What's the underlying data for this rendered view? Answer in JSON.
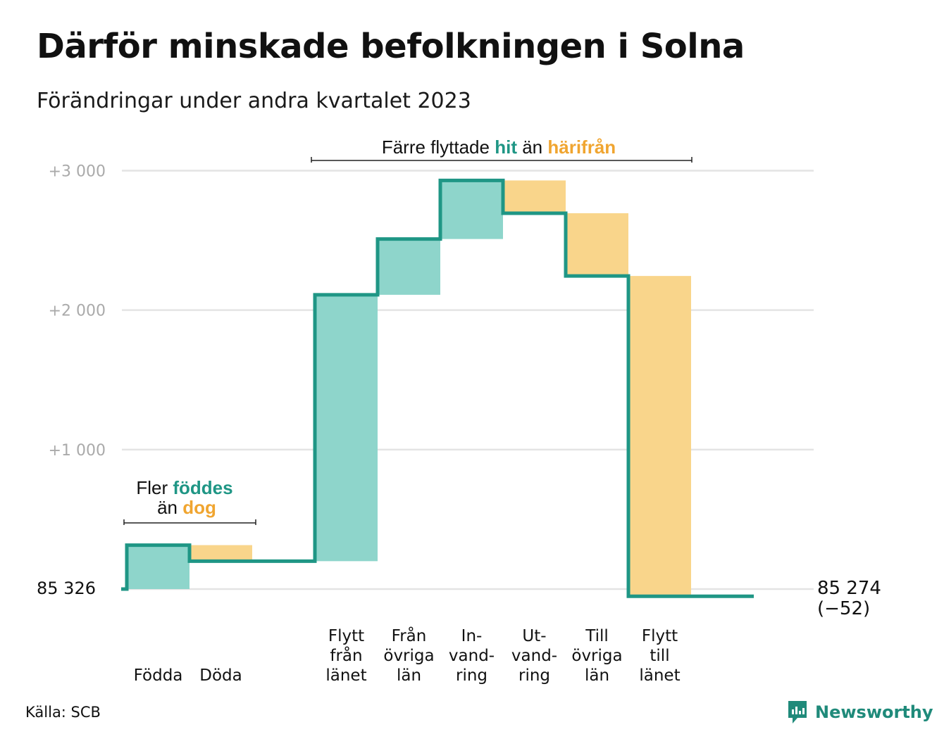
{
  "title": "Därför minskade befolkningen i Solna",
  "subtitle": "Förändringar under andra kvartalet 2023",
  "source": "Källa: SCB",
  "brand": "Newsworthy",
  "colors": {
    "increase": "#8ed5cb",
    "decrease": "#f9d58b",
    "line": "#1f9685",
    "grid": "#e4e4e4",
    "accent_green": "#1f9685",
    "accent_orange": "#f0a530"
  },
  "annotations": {
    "births": {
      "line1_a": "Fler ",
      "line1_b": "föddes",
      "line2_a": "än ",
      "line2_b": "dog"
    },
    "moves": {
      "a": "Färre flyttade ",
      "b": "hit",
      "c": " än ",
      "d": "härifrån"
    }
  },
  "chart_data": {
    "type": "waterfall",
    "start_value": 85326,
    "start_label": "85  326",
    "end_value": 85274,
    "end_label": "85 274",
    "end_change_label": "(−52)",
    "y_ticks": [
      {
        "value": 3000,
        "label": "+3  000"
      },
      {
        "value": 2000,
        "label": "+2  000"
      },
      {
        "value": 1000,
        "label": "+1  000"
      }
    ],
    "ylim": [
      -60,
      3000
    ],
    "grid": true,
    "steps": [
      {
        "labels": [
          "Födda"
        ],
        "change": 315
      },
      {
        "labels": [
          "Döda"
        ],
        "change": -115
      },
      {
        "labels": [],
        "change": 0
      },
      {
        "labels": [
          "Flytt",
          "från",
          "länet"
        ],
        "change": 1910
      },
      {
        "labels": [
          "Från",
          "övriga",
          "län"
        ],
        "change": 400
      },
      {
        "labels": [
          "In-",
          "vand-",
          "ring"
        ],
        "change": 420
      },
      {
        "labels": [
          "Ut-",
          "vand-",
          "ring"
        ],
        "change": -235
      },
      {
        "labels": [
          "Till",
          "övriga",
          "län"
        ],
        "change": -450
      },
      {
        "labels": [
          "Flytt",
          "till",
          "länet"
        ],
        "change": -2297
      },
      {
        "labels": [],
        "change": 0
      }
    ]
  }
}
